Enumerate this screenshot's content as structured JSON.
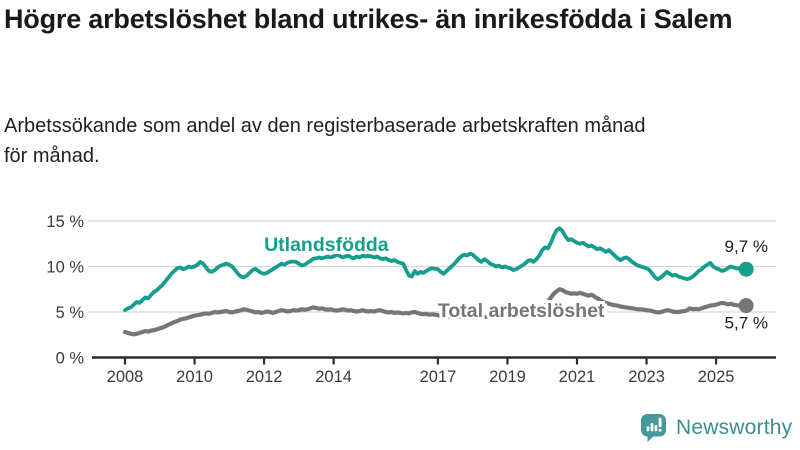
{
  "header": {
    "title": "Högre arbetslöshet bland utrikes- än inrikesfödda i Salem",
    "subtitle": "Arbetssökande som andel av den registerbaserade arbetskraften månad för månad."
  },
  "chart_data": {
    "type": "line",
    "title": "Högre arbetslöshet bland utrikes- än inrikesfödda i Salem",
    "frequency": "monthly",
    "start": "2008-01",
    "end": "2025-10",
    "grid": "horizontal",
    "ylim": [
      0,
      16
    ],
    "yticks": [
      {
        "value": 0,
        "label": "0 %"
      },
      {
        "value": 5,
        "label": "5 %"
      },
      {
        "value": 10,
        "label": "10 %"
      },
      {
        "value": 15,
        "label": "15 %"
      }
    ],
    "xticks": [
      {
        "year": 2008,
        "label": "2008"
      },
      {
        "year": 2010,
        "label": "2010"
      },
      {
        "year": 2012,
        "label": "2012"
      },
      {
        "year": 2014,
        "label": "2014"
      },
      {
        "year": 2017,
        "label": "2017"
      },
      {
        "year": 2019,
        "label": "2019"
      },
      {
        "year": 2021,
        "label": "2021"
      },
      {
        "year": 2023,
        "label": "2023"
      },
      {
        "year": 2025,
        "label": "2025"
      }
    ],
    "colors": {
      "axis": "#2d2d2d",
      "gridline": "#d8d8d8",
      "tick_text": "#3b3b3b",
      "value_text": "#1a1a1a"
    },
    "series": [
      {
        "name": "Utlandsfödda",
        "color": "#149e8c",
        "end_label": "9,7 %",
        "end_value": 9.7,
        "label_year": 2012.0,
        "label_value": 11.7,
        "values": [
          5.2,
          5.4,
          5.5,
          5.8,
          6.1,
          6.0,
          6.3,
          6.6,
          6.5,
          6.9,
          7.2,
          7.4,
          7.7,
          8.0,
          8.4,
          8.8,
          9.2,
          9.5,
          9.8,
          9.9,
          9.7,
          9.8,
          10.0,
          9.9,
          10.0,
          10.2,
          10.5,
          10.3,
          9.9,
          9.5,
          9.4,
          9.6,
          9.9,
          10.1,
          10.2,
          10.3,
          10.2,
          10.0,
          9.6,
          9.2,
          8.9,
          8.8,
          9.0,
          9.3,
          9.6,
          9.75,
          9.5,
          9.3,
          9.2,
          9.3,
          9.5,
          9.7,
          9.9,
          10.1,
          10.3,
          10.2,
          10.4,
          10.5,
          10.55,
          10.5,
          10.3,
          10.1,
          10.2,
          10.4,
          10.6,
          10.85,
          10.9,
          11.0,
          10.9,
          11.0,
          11.1,
          11.0,
          11.1,
          11.3,
          11.2,
          11.0,
          11.1,
          11.2,
          11.0,
          10.9,
          11.1,
          11.0,
          11.2,
          11.1,
          11.2,
          11.1,
          11.0,
          11.1,
          10.9,
          10.8,
          10.9,
          10.7,
          10.6,
          10.7,
          10.5,
          10.4,
          10.3,
          9.6,
          9.0,
          8.9,
          9.5,
          9.2,
          9.4,
          9.3,
          9.5,
          9.7,
          9.8,
          9.75,
          9.7,
          9.4,
          9.2,
          9.5,
          9.8,
          10.1,
          10.4,
          10.8,
          11.1,
          11.3,
          11.2,
          11.4,
          11.3,
          11.0,
          10.7,
          10.5,
          10.8,
          10.6,
          10.3,
          10.2,
          10.0,
          10.1,
          9.9,
          10.0,
          9.9,
          9.8,
          9.6,
          9.7,
          9.9,
          10.1,
          10.3,
          10.6,
          10.7,
          10.5,
          10.8,
          11.2,
          11.8,
          12.1,
          12.0,
          12.6,
          13.4,
          14.0,
          14.2,
          13.9,
          13.3,
          12.9,
          13.0,
          12.8,
          12.6,
          12.5,
          12.6,
          12.4,
          12.2,
          12.3,
          12.1,
          11.9,
          12.0,
          11.8,
          11.6,
          11.8,
          11.5,
          11.2,
          10.9,
          10.7,
          10.9,
          11.0,
          10.8,
          10.5,
          10.3,
          10.1,
          10.0,
          9.9,
          9.8,
          9.6,
          9.2,
          8.8,
          8.6,
          8.8,
          9.1,
          9.4,
          9.2,
          9.0,
          9.1,
          8.9,
          8.8,
          8.7,
          8.6,
          8.7,
          8.9,
          9.2,
          9.5,
          9.7,
          10.0,
          10.2,
          10.4,
          10.0,
          9.8,
          9.7,
          9.5,
          9.6,
          9.8,
          10.0,
          9.9,
          9.8,
          9.75,
          9.7
        ]
      },
      {
        "name": "Total arbetslöshet",
        "color": "#75757a",
        "end_label": "5,7 %",
        "end_value": 5.7,
        "label_year": 2017.0,
        "label_value": 4.45,
        "values": [
          2.8,
          2.7,
          2.6,
          2.55,
          2.6,
          2.7,
          2.8,
          2.9,
          2.85,
          2.95,
          3.0,
          3.1,
          3.2,
          3.3,
          3.45,
          3.6,
          3.75,
          3.9,
          4.0,
          4.15,
          4.25,
          4.3,
          4.4,
          4.5,
          4.6,
          4.65,
          4.7,
          4.8,
          4.85,
          4.8,
          4.9,
          5.0,
          4.95,
          5.0,
          5.05,
          5.1,
          5.0,
          4.95,
          5.05,
          5.1,
          5.2,
          5.3,
          5.25,
          5.15,
          5.05,
          4.95,
          5.0,
          4.9,
          4.95,
          5.05,
          5.0,
          4.9,
          5.0,
          5.1,
          5.2,
          5.15,
          5.05,
          5.1,
          5.2,
          5.15,
          5.2,
          5.3,
          5.25,
          5.3,
          5.4,
          5.5,
          5.45,
          5.35,
          5.4,
          5.3,
          5.25,
          5.3,
          5.2,
          5.15,
          5.2,
          5.3,
          5.25,
          5.15,
          5.2,
          5.1,
          5.05,
          5.1,
          5.2,
          5.1,
          5.05,
          5.1,
          5.05,
          5.15,
          5.2,
          5.1,
          5.0,
          4.95,
          5.0,
          4.9,
          4.95,
          4.9,
          4.85,
          4.9,
          4.85,
          4.95,
          5.0,
          4.9,
          4.8,
          4.75,
          4.8,
          4.7,
          4.75,
          4.7,
          4.65,
          4.55,
          4.6,
          4.5,
          4.45,
          4.55,
          4.6,
          4.5,
          4.45,
          4.5,
          4.4,
          4.45,
          4.4,
          4.35,
          4.45,
          4.5,
          4.45,
          4.5,
          4.6,
          4.55,
          4.6,
          4.5,
          4.55,
          4.65,
          4.6,
          4.7,
          4.65,
          4.7,
          4.8,
          4.75,
          4.8,
          4.75,
          4.85,
          4.9,
          5.0,
          5.2,
          5.3,
          5.6,
          6.1,
          6.6,
          7.0,
          7.3,
          7.5,
          7.4,
          7.2,
          7.1,
          7.0,
          7.05,
          7.0,
          7.1,
          7.0,
          6.9,
          6.8,
          6.9,
          6.7,
          6.5,
          6.3,
          6.1,
          6.0,
          5.9,
          5.8,
          5.75,
          5.7,
          5.6,
          5.55,
          5.5,
          5.45,
          5.4,
          5.35,
          5.3,
          5.3,
          5.25,
          5.2,
          5.15,
          5.1,
          5.0,
          4.95,
          5.0,
          5.1,
          5.2,
          5.15,
          5.05,
          5.0,
          5.0,
          5.05,
          5.1,
          5.2,
          5.4,
          5.3,
          5.35,
          5.3,
          5.4,
          5.5,
          5.6,
          5.7,
          5.75,
          5.8,
          5.9,
          6.0,
          5.95,
          5.85,
          5.9,
          5.8,
          5.75,
          5.7,
          5.7
        ]
      }
    ]
  },
  "footer": {
    "brand": "Newsworthy",
    "logo_icon": "bar-chart-speech-bubble-icon",
    "brand_color": "#3a8f8d",
    "icon_color": "#45999a"
  }
}
